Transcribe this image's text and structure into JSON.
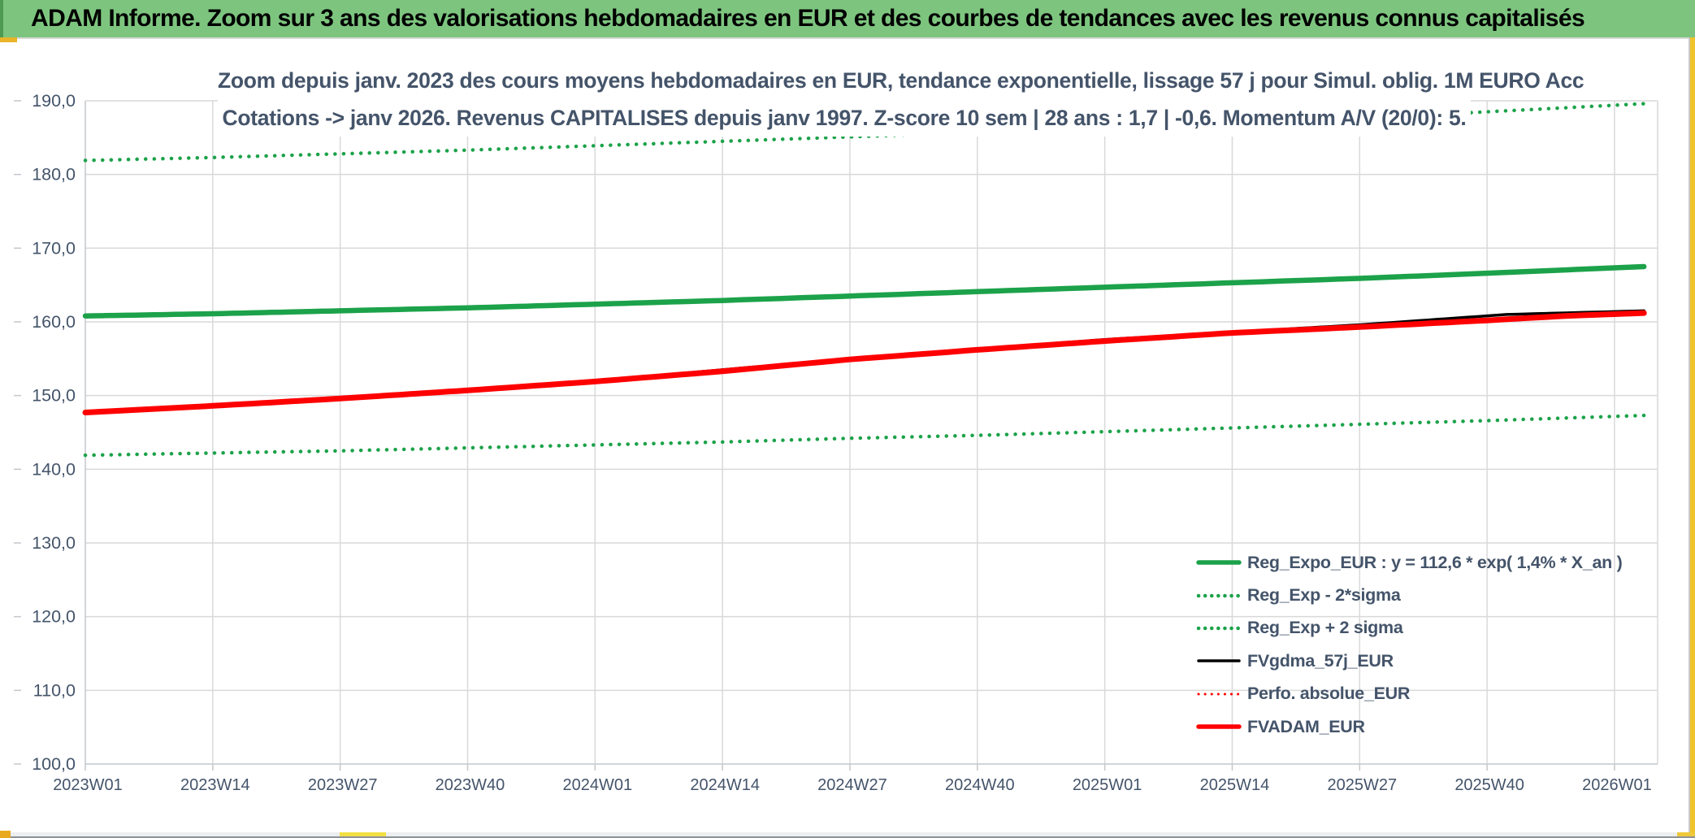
{
  "header": {
    "title": "ADAM Informe. Zoom sur 3 ans des valorisations hebdomadaires en EUR et des courbes de tendances avec les revenus connus capitalisés"
  },
  "chart_data": {
    "type": "line",
    "title_line1": "Zoom depuis janv. 2023 des cours moyens hebdomadaires en EUR, tendance exponentielle, lissage 57 j pour Simul. oblig. 1M EURO Acc",
    "title_line2": "Cotations -> janv 2026. Revenus CAPITALISES depuis janv 1997. Z-score 10 sem | 28 ans : 1,7 | -0,6. Momentum A/V (20/0): 5.",
    "ylim": [
      100,
      190
    ],
    "ytick_step": 10,
    "ytick_labels": [
      "100,0",
      "110,0",
      "120,0",
      "130,0",
      "140,0",
      "150,0",
      "160,0",
      "170,0",
      "180,0",
      "190,0"
    ],
    "xtick_labels": [
      "2023W01",
      "2023W14",
      "2023W27",
      "2023W40",
      "2024W01",
      "2024W14",
      "2024W27",
      "2024W40",
      "2025W01",
      "2025W14",
      "2025W27",
      "2025W40",
      "2026W01"
    ],
    "weeks_per_tick": 13,
    "x_week_range": [
      0,
      159
    ],
    "grid": true,
    "legend_position": "bottom-right",
    "series": [
      {
        "name": "Reg_Expo_EUR : y = 112,6 * exp( 1,4% *  X_an )",
        "color": "#1ca24a",
        "style": "solid",
        "width": 6.5,
        "z": 3,
        "points": [
          [
            0,
            160.8
          ],
          [
            13,
            161.1
          ],
          [
            26,
            161.5
          ],
          [
            39,
            161.9
          ],
          [
            52,
            162.4
          ],
          [
            65,
            162.9
          ],
          [
            78,
            163.5
          ],
          [
            91,
            164.1
          ],
          [
            104,
            164.7
          ],
          [
            117,
            165.3
          ],
          [
            130,
            165.9
          ],
          [
            143,
            166.6
          ],
          [
            159,
            167.5
          ]
        ]
      },
      {
        "name": "Reg_Exp - 2*sigma",
        "color": "#1ca24a",
        "style": "dotted",
        "width": 4.5,
        "z": 1,
        "points": [
          [
            0,
            141.9
          ],
          [
            13,
            142.2
          ],
          [
            26,
            142.5
          ],
          [
            39,
            142.9
          ],
          [
            52,
            143.3
          ],
          [
            65,
            143.7
          ],
          [
            78,
            144.2
          ],
          [
            91,
            144.6
          ],
          [
            104,
            145.1
          ],
          [
            117,
            145.6
          ],
          [
            130,
            146.1
          ],
          [
            143,
            146.6
          ],
          [
            159,
            147.3
          ]
        ]
      },
      {
        "name": "Reg_Exp + 2 sigma",
        "color": "#1ca24a",
        "style": "dotted",
        "width": 4.5,
        "z": 2,
        "points": [
          [
            0,
            181.9
          ],
          [
            13,
            182.3
          ],
          [
            26,
            182.8
          ],
          [
            39,
            183.3
          ],
          [
            52,
            183.9
          ],
          [
            65,
            184.5
          ],
          [
            78,
            185.1
          ],
          [
            91,
            185.7
          ],
          [
            104,
            186.3
          ],
          [
            117,
            186.9
          ],
          [
            130,
            187.6
          ],
          [
            143,
            188.5
          ],
          [
            159,
            189.6
          ]
        ]
      },
      {
        "name": "FVgdma_57j_EUR",
        "color": "#000000",
        "style": "solid",
        "width": 3.5,
        "z": 5,
        "points": [
          [
            0,
            147.8
          ],
          [
            26,
            149.7
          ],
          [
            52,
            152.0
          ],
          [
            78,
            155.0
          ],
          [
            104,
            157.6
          ],
          [
            130,
            159.6
          ],
          [
            145,
            161.0
          ],
          [
            159,
            161.5
          ]
        ]
      },
      {
        "name": "Perfo. absolue_EUR",
        "color": "#ff0000",
        "style": "dotted",
        "width": 3,
        "z": 4,
        "points": [
          [
            0,
            147.7
          ],
          [
            26,
            149.6
          ],
          [
            52,
            151.9
          ],
          [
            78,
            154.9
          ],
          [
            104,
            157.4
          ],
          [
            130,
            159.3
          ],
          [
            145,
            160.5
          ],
          [
            159,
            161.2
          ]
        ]
      },
      {
        "name": "FVADAM_EUR",
        "color": "#ff0000",
        "style": "solid",
        "width": 7,
        "z": 6,
        "points": [
          [
            0,
            147.7
          ],
          [
            13,
            148.6
          ],
          [
            26,
            149.6
          ],
          [
            39,
            150.7
          ],
          [
            52,
            151.9
          ],
          [
            65,
            153.3
          ],
          [
            78,
            154.9
          ],
          [
            91,
            156.2
          ],
          [
            104,
            157.4
          ],
          [
            117,
            158.5
          ],
          [
            130,
            159.3
          ],
          [
            143,
            160.2
          ],
          [
            151,
            160.8
          ],
          [
            159,
            161.2
          ]
        ]
      }
    ]
  },
  "colors": {
    "header_bg": "#7dc57f",
    "title_text": "#44546a",
    "axis_text": "#44546a",
    "gridline": "#d9d9d9",
    "axis_line": "#c4c7cc",
    "accent_gold": "#e9b427",
    "accent_yellow": "#f2df44"
  }
}
